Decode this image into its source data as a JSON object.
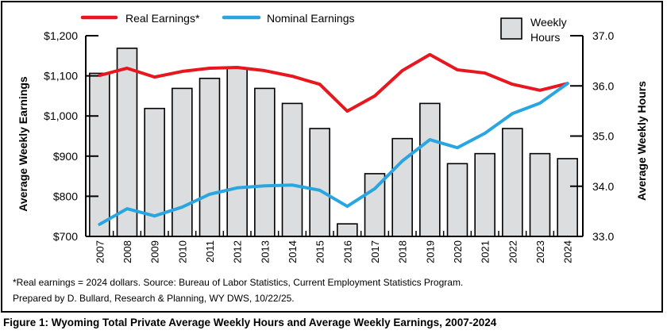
{
  "chart_data": {
    "type": "bar",
    "title": "Figure 1: Wyoming Total Private Average Weekly Hours and Average Weekly Earnings, 2007-2024",
    "categories": [
      "2007",
      "2008",
      "2009",
      "2010",
      "2011",
      "2012",
      "2013",
      "2014",
      "2015",
      "2016",
      "2017",
      "2018",
      "2019",
      "2020",
      "2021",
      "2022",
      "2023",
      "2024"
    ],
    "series": [
      {
        "name": "Weekly Hours",
        "type": "bar",
        "axis": "right",
        "color": "#dcdddf",
        "values": [
          36.25,
          36.75,
          35.55,
          35.95,
          36.15,
          36.35,
          35.95,
          35.65,
          35.15,
          33.25,
          34.25,
          34.95,
          35.65,
          34.45,
          34.65,
          35.15,
          34.65,
          34.55
        ]
      },
      {
        "name": "Real Earnings*",
        "type": "line",
        "axis": "left",
        "color": "#e8161e",
        "values": [
          1101,
          1119,
          1097,
          1111,
          1119,
          1121,
          1113,
          1099,
          1079,
          1012,
          1050,
          1113,
          1153,
          1115,
          1107,
          1079,
          1064,
          1081
        ]
      },
      {
        "name": "Nominal Earnings",
        "type": "line",
        "axis": "left",
        "color": "#29a6e0",
        "values": [
          730,
          769,
          751,
          773,
          805,
          821,
          826,
          828,
          815,
          775,
          819,
          888,
          941,
          921,
          957,
          1006,
          1032,
          1081
        ]
      }
    ],
    "ylabel": "Average Weekly Earnings",
    "ylim": [
      700,
      1200
    ],
    "yticks": [
      "$700",
      "$800",
      "$900",
      "$1,000",
      "$1,100",
      "$1,200"
    ],
    "y2label": "Average Weekly Hours",
    "y2lim": [
      33.0,
      37.0
    ],
    "y2ticks": [
      "33.0",
      "34.0",
      "35.0",
      "36.0",
      "37.0"
    ],
    "xlabel": "",
    "grid": false,
    "legend": {
      "placement": "top",
      "items": [
        {
          "label": "Real Earnings*",
          "color": "#e8161e",
          "kind": "line"
        },
        {
          "label": "Nominal Earnings",
          "color": "#29a6e0",
          "kind": "line"
        },
        {
          "label": "Weekly Hours",
          "color": "#dcdddf",
          "kind": "box"
        }
      ]
    }
  },
  "notes": {
    "line1": "*Real earnings = 2024 dollars. Source: Bureau of Labor Statistics, Current Employment Statistics Program.",
    "line2": "Prepared by D. Bullard, Research & Planning, WY DWS, 10/22/25."
  },
  "figure_title": "Figure 1: Wyoming Total Private Average Weekly Hours and Average Weekly Earnings, 2007-2024"
}
